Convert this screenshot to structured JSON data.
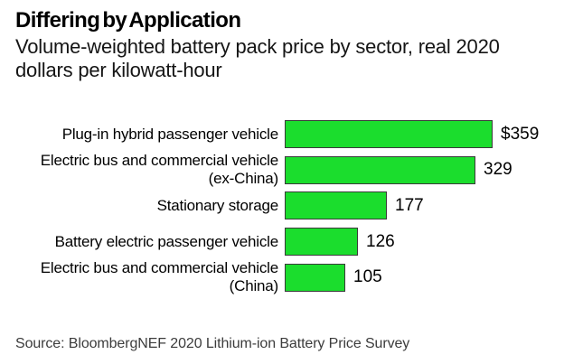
{
  "header": {
    "title": "Differing by Application",
    "subtitle_lines": [
      "Volume-weighted battery pack price by sector, real 2020",
      "dollars per kilowatt-hour"
    ]
  },
  "chart_data": {
    "type": "bar",
    "orientation": "horizontal",
    "title": "Differing by Application",
    "subtitle": "Volume-weighted battery pack price by sector, real 2020 dollars per kilowatt-hour",
    "categories": [
      "Plug-in hybrid passenger vehicle",
      "Electric bus and commercial vehicle (ex-China)",
      "Stationary storage",
      "Battery electric passenger vehicle",
      "Electric bus and commercial vehicle (China)"
    ],
    "category_lines": [
      [
        "Plug-in hybrid passenger vehicle"
      ],
      [
        "Electric bus and commercial vehicle",
        "(ex-China)"
      ],
      [
        "Stationary storage"
      ],
      [
        "Battery electric passenger vehicle"
      ],
      [
        "Electric bus and commercial vehicle",
        "(China)"
      ]
    ],
    "values": [
      359,
      329,
      177,
      126,
      105
    ],
    "value_labels": [
      "$359",
      "329",
      "177",
      "126",
      "105"
    ],
    "xlim": [
      0,
      359
    ],
    "grid": false,
    "legend": false,
    "bar_color": "#1bdd2d",
    "bar_border_color": "#3a3a3a"
  },
  "footer": {
    "source": "Source: BloombergNEF 2020 Lithium-ion Battery Price Survey"
  }
}
